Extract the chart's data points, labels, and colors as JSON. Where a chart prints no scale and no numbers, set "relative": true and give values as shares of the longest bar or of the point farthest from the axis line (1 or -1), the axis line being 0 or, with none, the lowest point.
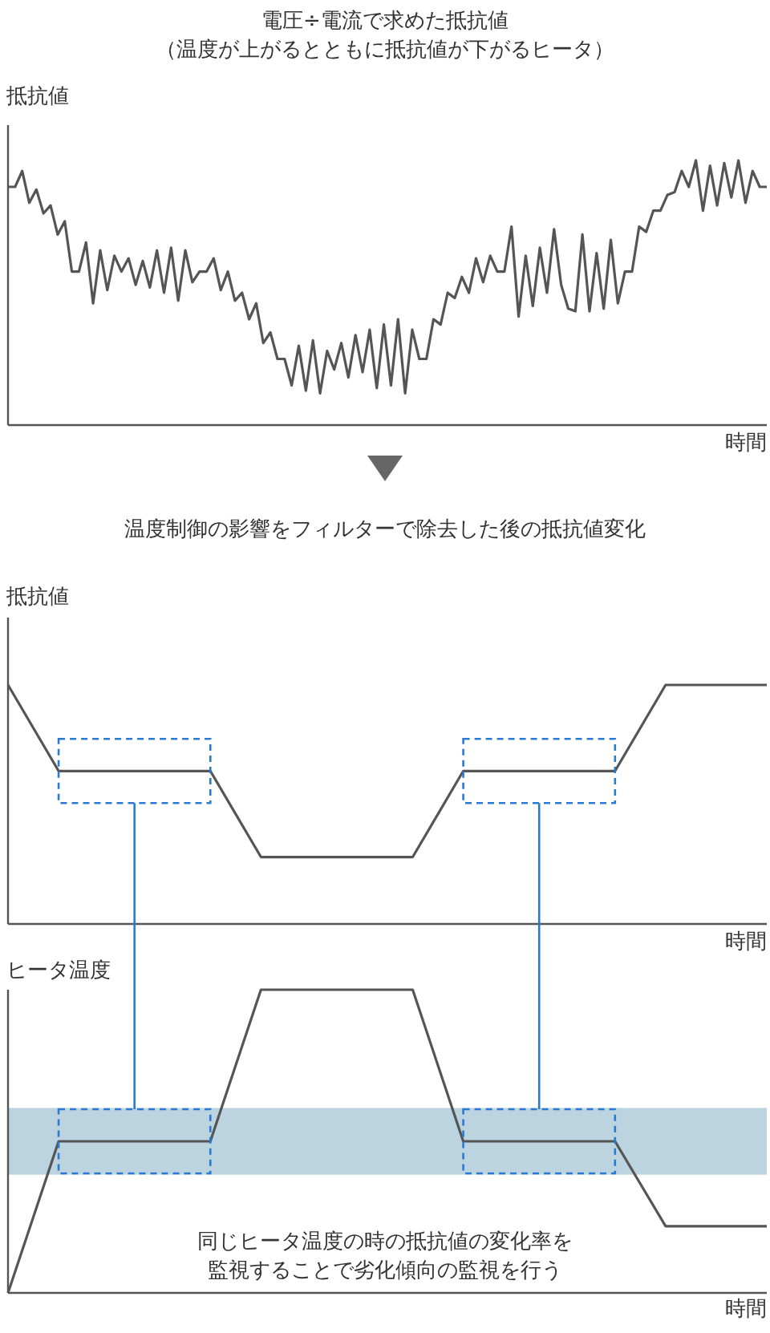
{
  "chart_data": [
    {
      "type": "line",
      "title": "電圧÷電流で求めた抵抗値",
      "subtitle": "（温度が上がるとともに抵抗値が下がるヒータ）",
      "ylabel": "抵抗値",
      "xlabel": "時間",
      "relative": true,
      "marker": "none",
      "line_style": "solid",
      "categories": [
        null,
        null,
        null,
        null,
        null,
        null,
        null,
        null,
        null,
        null,
        null,
        null,
        null,
        null,
        null,
        null,
        null,
        null,
        null,
        null,
        null,
        null,
        null,
        null,
        null,
        null,
        null,
        null,
        null,
        null,
        null,
        null,
        null,
        null,
        null,
        null,
        null,
        null,
        null,
        null,
        null,
        null,
        null,
        null,
        null,
        null,
        null,
        null,
        null,
        null,
        null,
        null,
        null,
        null,
        null,
        null,
        null,
        null,
        null,
        null,
        null,
        null,
        null,
        null,
        null,
        null,
        null,
        null,
        null,
        null,
        null,
        null,
        null,
        null,
        null,
        null,
        null,
        null,
        null,
        null,
        null,
        null,
        null,
        null,
        null,
        null,
        null,
        null,
        null,
        null,
        null,
        null,
        null,
        null,
        null,
        null,
        null,
        null,
        null,
        null,
        null,
        null,
        null,
        null,
        null,
        null,
        null,
        null
      ],
      "series": [
        {
          "color": "#555555",
          "values": [
            0.9,
            0.9,
            0.96,
            0.84,
            0.89,
            0.8,
            0.83,
            0.72,
            0.77,
            0.58,
            0.58,
            0.69,
            0.46,
            0.66,
            0.51,
            0.64,
            0.58,
            0.63,
            0.53,
            0.62,
            0.52,
            0.66,
            0.5,
            0.67,
            0.47,
            0.66,
            0.54,
            0.58,
            0.58,
            0.63,
            0.51,
            0.58,
            0.47,
            0.5,
            0.4,
            0.46,
            0.31,
            0.35,
            0.25,
            0.25,
            0.15,
            0.3,
            0.13,
            0.32,
            0.12,
            0.28,
            0.21,
            0.31,
            0.18,
            0.34,
            0.2,
            0.36,
            0.14,
            0.38,
            0.15,
            0.4,
            0.12,
            0.36,
            0.25,
            0.25,
            0.4,
            0.38,
            0.5,
            0.48,
            0.56,
            0.5,
            0.63,
            0.54,
            0.64,
            0.58,
            0.58,
            0.75,
            0.41,
            0.64,
            0.45,
            0.67,
            0.5,
            0.74,
            0.53,
            0.44,
            0.43,
            0.72,
            0.43,
            0.65,
            0.44,
            0.7,
            0.46,
            0.58,
            0.58,
            0.75,
            0.73,
            0.81,
            0.81,
            0.87,
            0.88,
            0.96,
            0.9,
            1.0,
            0.81,
            0.98,
            0.83,
            0.99,
            0.86,
            1.0,
            0.84,
            0.96,
            0.9,
            0.9
          ]
        }
      ]
    },
    {
      "type": "line",
      "title": "温度制御の影響をフィルターで除去した後の抵抗値変化",
      "ylabel": "抵抗値",
      "xlabel": "時間",
      "relative": true,
      "marker": "none",
      "line_style": "solid",
      "categories": [
        null,
        null,
        null,
        null,
        null,
        null,
        null,
        null,
        null,
        null,
        null,
        null,
        null,
        null,
        null,
        null
      ],
      "series": [
        {
          "color": "#555555",
          "values": [
            1,
            0.64,
            0.64,
            0.64,
            0.64,
            0.28,
            0.28,
            0.28,
            0.28,
            0.64,
            0.64,
            0.64,
            0.64,
            1,
            1,
            1
          ]
        }
      ]
    },
    {
      "type": "line",
      "ylabel": "ヒータ温度",
      "xlabel": "時間",
      "relative": true,
      "marker": "none",
      "line_style": "solid",
      "categories": [
        null,
        null,
        null,
        null,
        null,
        null,
        null,
        null,
        null,
        null,
        null,
        null,
        null,
        null,
        null,
        null
      ],
      "annotations": [
        "同じヒータ温度の時の抵抗値の変化率を",
        "監視することで劣化傾向の監視を行う"
      ],
      "bands": [
        {
          "axis": "y",
          "from": 0.39,
          "to": 0.61,
          "color": "#bcd3e0"
        }
      ],
      "series": [
        {
          "color": "#555555",
          "values": [
            0,
            0.5,
            0.5,
            0.5,
            0.5,
            1,
            1,
            1,
            1,
            0.5,
            0.5,
            0.5,
            0.5,
            0.22,
            0.22,
            0.22
          ]
        }
      ]
    }
  ]
}
